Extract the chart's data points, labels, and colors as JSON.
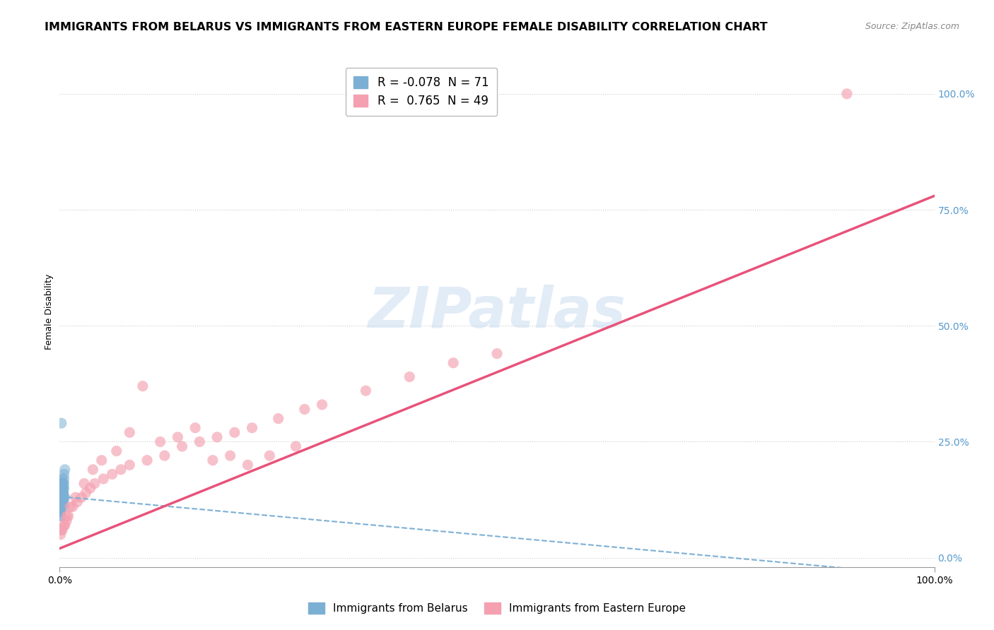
{
  "title": "IMMIGRANTS FROM BELARUS VS IMMIGRANTS FROM EASTERN EUROPE FEMALE DISABILITY CORRELATION CHART",
  "source": "Source: ZipAtlas.com",
  "xlabel_blue": "Immigrants from Belarus",
  "xlabel_pink": "Immigrants from Eastern Europe",
  "ylabel": "Female Disability",
  "R_blue": -0.078,
  "N_blue": 71,
  "R_pink": 0.765,
  "N_pink": 49,
  "color_blue": "#7BAFD4",
  "color_pink": "#F4A0B0",
  "color_pink_line": "#E8527A",
  "color_blue_line": "#7BAFD4",
  "xlim": [
    0.0,
    1.0
  ],
  "ylim": [
    -0.02,
    1.08
  ],
  "blue_scatter_x": [
    0.002,
    0.004,
    0.006,
    0.002,
    0.003,
    0.005,
    0.003,
    0.004,
    0.005,
    0.003,
    0.001,
    0.002,
    0.003,
    0.004,
    0.005,
    0.002,
    0.003,
    0.004,
    0.002,
    0.003,
    0.006,
    0.003,
    0.001,
    0.002,
    0.004,
    0.002,
    0.003,
    0.002,
    0.005,
    0.001,
    0.002,
    0.003,
    0.002,
    0.004,
    0.001,
    0.002,
    0.003,
    0.003,
    0.005,
    0.002,
    0.001,
    0.002,
    0.004,
    0.003,
    0.002,
    0.002,
    0.001,
    0.004,
    0.002,
    0.003,
    0.002,
    0.004,
    0.001,
    0.002,
    0.003,
    0.002,
    0.005,
    0.002,
    0.001,
    0.002,
    0.004,
    0.002,
    0.003,
    0.002,
    0.001,
    0.002,
    0.002,
    0.003,
    0.004,
    0.002,
    0.002
  ],
  "blue_scatter_y": [
    0.13,
    0.16,
    0.19,
    0.11,
    0.14,
    0.17,
    0.12,
    0.15,
    0.18,
    0.13,
    0.1,
    0.12,
    0.15,
    0.14,
    0.13,
    0.11,
    0.16,
    0.12,
    0.14,
    0.15,
    0.13,
    0.17,
    0.09,
    0.12,
    0.14,
    0.11,
    0.15,
    0.13,
    0.16,
    0.1,
    0.14,
    0.12,
    0.15,
    0.13,
    0.11,
    0.14,
    0.16,
    0.12,
    0.15,
    0.13,
    0.1,
    0.12,
    0.14,
    0.13,
    0.15,
    0.11,
    0.12,
    0.14,
    0.13,
    0.15,
    0.16,
    0.12,
    0.1,
    0.13,
    0.14,
    0.15,
    0.11,
    0.13,
    0.12,
    0.14,
    0.15,
    0.12,
    0.13,
    0.14,
    0.09,
    0.11,
    0.13,
    0.12,
    0.14,
    0.13,
    0.29
  ],
  "pink_scatter_x": [
    0.001,
    0.003,
    0.006,
    0.008,
    0.01,
    0.015,
    0.02,
    0.025,
    0.03,
    0.035,
    0.04,
    0.05,
    0.06,
    0.07,
    0.08,
    0.1,
    0.12,
    0.14,
    0.16,
    0.18,
    0.2,
    0.22,
    0.25,
    0.28,
    0.3,
    0.35,
    0.4,
    0.45,
    0.5,
    0.002,
    0.005,
    0.008,
    0.012,
    0.018,
    0.028,
    0.038,
    0.048,
    0.065,
    0.08,
    0.095,
    0.115,
    0.135,
    0.155,
    0.175,
    0.195,
    0.215,
    0.24,
    0.27,
    0.9
  ],
  "pink_scatter_y": [
    0.05,
    0.06,
    0.07,
    0.08,
    0.09,
    0.11,
    0.12,
    0.13,
    0.14,
    0.15,
    0.16,
    0.17,
    0.18,
    0.19,
    0.2,
    0.21,
    0.22,
    0.24,
    0.25,
    0.26,
    0.27,
    0.28,
    0.3,
    0.32,
    0.33,
    0.36,
    0.39,
    0.42,
    0.44,
    0.06,
    0.07,
    0.09,
    0.11,
    0.13,
    0.16,
    0.19,
    0.21,
    0.23,
    0.27,
    0.37,
    0.25,
    0.26,
    0.28,
    0.21,
    0.22,
    0.2,
    0.22,
    0.24,
    1.0
  ],
  "blue_line_x0": 0.0,
  "blue_line_y0": 0.132,
  "blue_line_x1": 1.0,
  "blue_line_y1": -0.04,
  "pink_line_x0": 0.0,
  "pink_line_y0": 0.02,
  "pink_line_x1": 1.0,
  "pink_line_y1": 0.78,
  "ytick_labels": [
    "0.0%",
    "25.0%",
    "50.0%",
    "75.0%",
    "100.0%"
  ],
  "ytick_values": [
    0.0,
    0.25,
    0.5,
    0.75,
    1.0
  ],
  "xtick_labels": [
    "0.0%",
    "100.0%"
  ],
  "xtick_values": [
    0.0,
    1.0
  ],
  "title_fontsize": 11.5,
  "axis_label_fontsize": 9,
  "tick_fontsize": 10,
  "legend_fontsize": 12,
  "right_tick_color": "#5599CC"
}
